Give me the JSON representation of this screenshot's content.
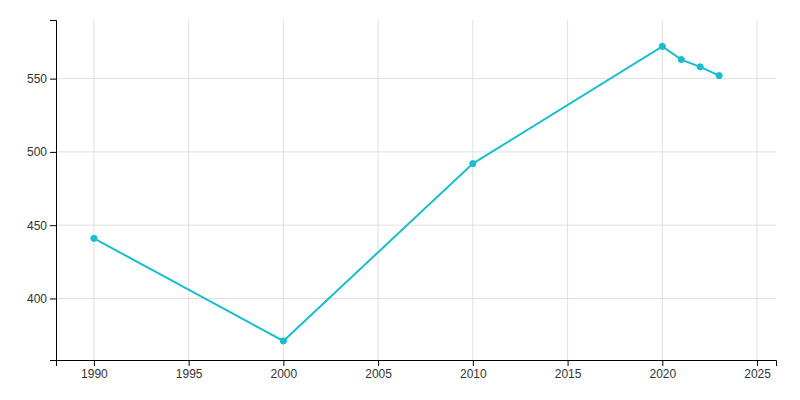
{
  "chart_data": {
    "type": "line",
    "x": [
      1990,
      2000,
      2010,
      2020,
      2021,
      2022,
      2023
    ],
    "values": [
      441,
      371,
      492,
      572,
      563,
      558,
      552
    ],
    "color": "#17BECF",
    "marker": "circle",
    "xlim": [
      1988,
      2026
    ],
    "ylim": [
      358,
      590
    ],
    "xticks": [
      1990,
      1995,
      2000,
      2005,
      2010,
      2015,
      2020,
      2025
    ],
    "yticks": [
      400,
      450,
      500,
      550
    ],
    "grid": true
  }
}
